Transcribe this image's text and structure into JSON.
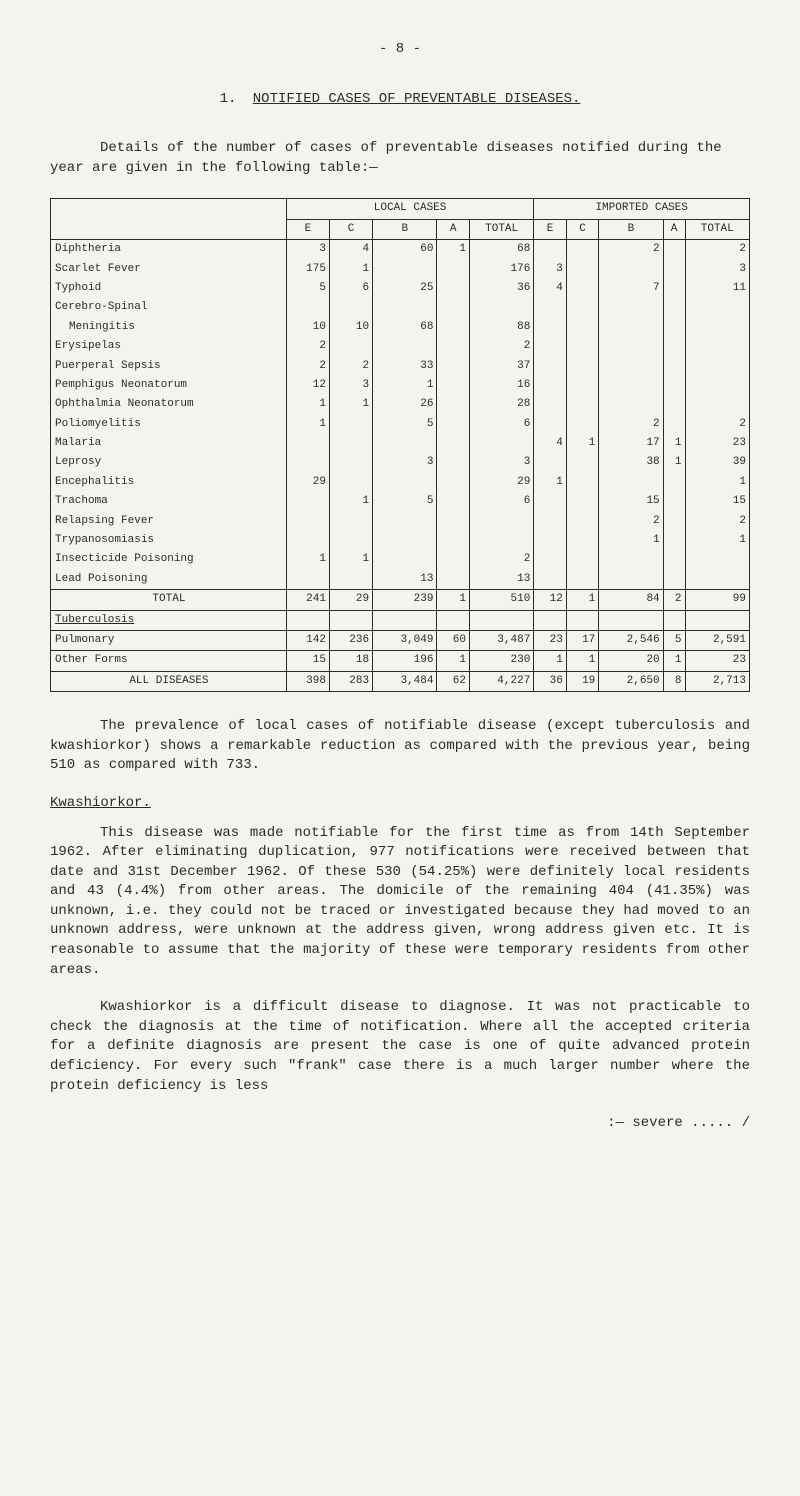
{
  "page_number": "- 8 -",
  "section": {
    "number": "1.",
    "title": "NOTIFIED CASES OF PREVENTABLE DISEASES."
  },
  "intro": "Details of the number of cases of preventable diseases notified during the year are given in the following table:—",
  "table": {
    "group_headers": [
      "LOCAL CASES",
      "IMPORTED CASES"
    ],
    "columns": [
      "E",
      "C",
      "B",
      "A",
      "TOTAL",
      "E",
      "C",
      "B",
      "A",
      "TOTAL"
    ],
    "rows": [
      {
        "label": "Diphtheria",
        "c": [
          "3",
          "4",
          "60",
          "1",
          "68",
          "",
          "",
          "2",
          "",
          "2"
        ]
      },
      {
        "label": "Scarlet Fever",
        "c": [
          "175",
          "1",
          "",
          "",
          "176",
          "3",
          "",
          "",
          "",
          "3"
        ]
      },
      {
        "label": "Typhoid",
        "c": [
          "5",
          "6",
          "25",
          "",
          "36",
          "4",
          "",
          "7",
          "",
          "11"
        ]
      },
      {
        "label": "Cerebro-Spinal",
        "c": [
          "",
          "",
          "",
          "",
          "",
          "",
          "",
          "",
          "",
          ""
        ]
      },
      {
        "label": "  Meningitis",
        "c": [
          "10",
          "10",
          "68",
          "",
          "88",
          "",
          "",
          "",
          "",
          ""
        ]
      },
      {
        "label": "Erysipelas",
        "c": [
          "2",
          "",
          "",
          "",
          "2",
          "",
          "",
          "",
          "",
          ""
        ]
      },
      {
        "label": "Puerperal Sepsis",
        "c": [
          "2",
          "2",
          "33",
          "",
          "37",
          "",
          "",
          "",
          "",
          ""
        ]
      },
      {
        "label": "Pemphigus Neonatorum",
        "c": [
          "12",
          "3",
          "1",
          "",
          "16",
          "",
          "",
          "",
          "",
          ""
        ]
      },
      {
        "label": "Ophthalmia Neonatorum",
        "c": [
          "1",
          "1",
          "26",
          "",
          "28",
          "",
          "",
          "",
          "",
          ""
        ]
      },
      {
        "label": "Poliomyelitis",
        "c": [
          "1",
          "",
          "5",
          "",
          "6",
          "",
          "",
          "2",
          "",
          "2"
        ]
      },
      {
        "label": "Malaria",
        "c": [
          "",
          "",
          "",
          "",
          "",
          "4",
          "1",
          "17",
          "1",
          "23"
        ]
      },
      {
        "label": "Leprosy",
        "c": [
          "",
          "",
          "3",
          "",
          "3",
          "",
          "",
          "38",
          "1",
          "39"
        ]
      },
      {
        "label": "Encephalitis",
        "c": [
          "29",
          "",
          "",
          "",
          "29",
          "1",
          "",
          "",
          "",
          "1"
        ]
      },
      {
        "label": "Trachoma",
        "c": [
          "",
          "1",
          "5",
          "",
          "6",
          "",
          "",
          "15",
          "",
          "15"
        ]
      },
      {
        "label": "Relapsing Fever",
        "c": [
          "",
          "",
          "",
          "",
          "",
          "",
          "",
          "2",
          "",
          "2"
        ]
      },
      {
        "label": "Trypanosomiasis",
        "c": [
          "",
          "",
          "",
          "",
          "",
          "",
          "",
          "1",
          "",
          "1"
        ]
      },
      {
        "label": "Insecticide Poisoning",
        "c": [
          "1",
          "1",
          "",
          "",
          "2",
          "",
          "",
          "",
          "",
          ""
        ]
      },
      {
        "label": "Lead Poisoning",
        "c": [
          "",
          "",
          "13",
          "",
          "13",
          "",
          "",
          "",
          "",
          ""
        ]
      }
    ],
    "totals": [
      {
        "label": "TOTAL",
        "c": [
          "241",
          "29",
          "239",
          "1",
          "510",
          "12",
          "1",
          "84",
          "2",
          "99"
        ]
      },
      {
        "label": "Tuberculosis",
        "c": [
          "",
          "",
          "",
          "",
          "",
          "",
          "",
          "",
          "",
          ""
        ],
        "underline": true
      },
      {
        "label": "Pulmonary",
        "c": [
          "142",
          "236",
          "3,049",
          "60",
          "3,487",
          "23",
          "17",
          "2,546",
          "5",
          "2,591"
        ]
      },
      {
        "label": "Other Forms",
        "c": [
          "15",
          "18",
          "196",
          "1",
          "230",
          "1",
          "1",
          "20",
          "1",
          "23"
        ]
      }
    ],
    "all": {
      "label": "ALL DISEASES",
      "c": [
        "398",
        "283",
        "3,484",
        "62",
        "4,227",
        "36",
        "19",
        "2,650",
        "8",
        "2,713"
      ]
    }
  },
  "para1": "The prevalence of local cases of notifiable disease (except tuberculosis and kwashiorkor) shows a remarkable reduction as compared with the previous year, being 510 as compared with 733.",
  "subheading": "Kwashiorkor.",
  "para2": "This disease was made notifiable for the first time as from 14th September 1962. After eliminating duplication, 977 notifications were received between that date and 31st December 1962. Of these 530 (54.25%) were definitely local residents and 43 (4.4%) from other areas. The domicile of the remaining 404 (41.35%) was unknown, i.e. they could not be traced or investigated because they had moved to an unknown address, were unknown at the address given, wrong address given etc. It is reasonable to assume that the majority of these were temporary residents from other areas.",
  "para3": "Kwashiorkor is a difficult disease to diagnose. It was not practicable to check the diagnosis at the time of notification. Where all the accepted criteria for a definite diagnosis are present the case is one of quite advanced protein deficiency. For every such \"frank\" case there is a much larger number where the protein deficiency is less",
  "footer": ":— severe ..... /"
}
